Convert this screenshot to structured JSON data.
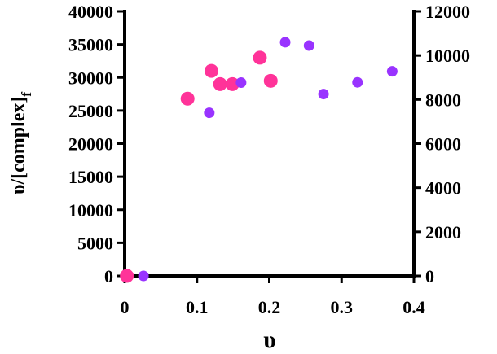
{
  "chart_data": {
    "type": "scatter",
    "title": "",
    "xlabel": "υ",
    "ylabel": "υ/[complex]",
    "ylabel_subscript": "f",
    "y2label": "",
    "xlim": [
      0,
      0.4
    ],
    "ylim": [
      0,
      40000
    ],
    "y2lim": [
      0,
      12000
    ],
    "grid": false,
    "legend": "none",
    "x_ticks": [
      "0",
      "0.1",
      "0.2",
      "0.3",
      "0.4"
    ],
    "y_ticks": [
      "0",
      "5000",
      "10000",
      "15000",
      "20000",
      "25000",
      "30000",
      "35000",
      "40000"
    ],
    "y2_ticks": [
      "0",
      "2000",
      "4000",
      "6000",
      "8000",
      "10000",
      "12000"
    ],
    "series": [
      {
        "axis": "left",
        "color": "#ff3399",
        "marker": "large-circle",
        "points": [
          {
            "x": 0.003,
            "y": 0
          },
          {
            "x": 0.087,
            "y": 26800
          },
          {
            "x": 0.12,
            "y": 31000
          },
          {
            "x": 0.132,
            "y": 29000
          },
          {
            "x": 0.149,
            "y": 29000
          },
          {
            "x": 0.187,
            "y": 33000
          },
          {
            "x": 0.202,
            "y": 29500
          }
        ]
      },
      {
        "axis": "right",
        "color": "#9933ff",
        "marker": "small-circle",
        "points": [
          {
            "x": 0.026,
            "y": 0
          },
          {
            "x": 0.117,
            "y": 7400
          },
          {
            "x": 0.161,
            "y": 8770
          },
          {
            "x": 0.222,
            "y": 10600
          },
          {
            "x": 0.255,
            "y": 10450
          },
          {
            "x": 0.275,
            "y": 8250
          },
          {
            "x": 0.322,
            "y": 8780
          },
          {
            "x": 0.37,
            "y": 9280
          }
        ]
      }
    ]
  }
}
